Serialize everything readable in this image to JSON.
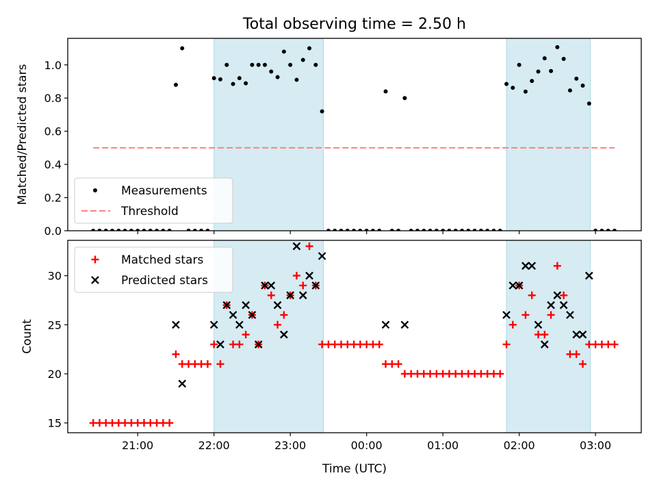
{
  "figure": {
    "title": "Total observing time = 2.50 h",
    "xlabel": "Time (UTC)"
  },
  "chart_data": [
    {
      "type": "scatter",
      "panel": "top",
      "ylabel": "Matched/Predicted stars",
      "xlim": [
        "20:05",
        "03:36"
      ],
      "ylim": [
        0,
        1.16
      ],
      "yticks": [
        0.0,
        0.2,
        0.4,
        0.6,
        0.8,
        1.0
      ],
      "ytick_labels": [
        "0.0",
        "0.2",
        "0.4",
        "0.6",
        "0.8",
        "1.0"
      ],
      "xticks": [
        "21:00",
        "22:00",
        "23:00",
        "00:00",
        "01:00",
        "02:00",
        "03:00"
      ],
      "xtick_labels": [
        "21:00",
        "22:00",
        "23:00",
        "00:00",
        "01:00",
        "02:00",
        "03:00"
      ],
      "shaded_intervals": [
        [
          "22:00",
          "23:26"
        ],
        [
          "01:50",
          "02:56"
        ]
      ],
      "shade_color": "#add8e6",
      "legend": {
        "location": "lower-left",
        "entries": [
          "Measurements",
          "Threshold"
        ]
      },
      "series": [
        {
          "name": "Measurements",
          "marker": "dot",
          "color": "#000000",
          "points": [
            [
              "20:25",
              0
            ],
            [
              "20:30",
              0
            ],
            [
              "20:35",
              0
            ],
            [
              "20:40",
              0
            ],
            [
              "20:45",
              0
            ],
            [
              "20:50",
              0
            ],
            [
              "20:55",
              0
            ],
            [
              "21:00",
              0
            ],
            [
              "21:05",
              0
            ],
            [
              "21:10",
              0
            ],
            [
              "21:15",
              0
            ],
            [
              "21:20",
              0
            ],
            [
              "21:25",
              0
            ],
            [
              "21:30",
              0.88
            ],
            [
              "21:35",
              1.1
            ],
            [
              "21:40",
              0
            ],
            [
              "21:45",
              0
            ],
            [
              "21:50",
              0
            ],
            [
              "21:55",
              0
            ],
            [
              "22:00",
              0.92
            ],
            [
              "22:05",
              0.913
            ],
            [
              "22:10",
              1.0
            ],
            [
              "22:15",
              0.885
            ],
            [
              "22:20",
              0.92
            ],
            [
              "22:25",
              0.889
            ],
            [
              "22:30",
              1.0
            ],
            [
              "22:35",
              1.0
            ],
            [
              "22:40",
              1.0
            ],
            [
              "22:45",
              0.96
            ],
            [
              "22:50",
              0.926
            ],
            [
              "22:55",
              1.08
            ],
            [
              "23:00",
              1.0
            ],
            [
              "23:05",
              0.91
            ],
            [
              "23:10",
              1.03
            ],
            [
              "23:15",
              1.1
            ],
            [
              "23:20",
              1.0
            ],
            [
              "23:25",
              0.72
            ],
            [
              "23:30",
              0
            ],
            [
              "23:35",
              0
            ],
            [
              "23:40",
              0
            ],
            [
              "23:45",
              0
            ],
            [
              "23:50",
              0
            ],
            [
              "23:55",
              0
            ],
            [
              "00:00",
              0
            ],
            [
              "00:05",
              0
            ],
            [
              "00:10",
              0
            ],
            [
              "00:15",
              0.84
            ],
            [
              "00:20",
              0
            ],
            [
              "00:25",
              0
            ],
            [
              "00:30",
              0.8
            ],
            [
              "00:35",
              0
            ],
            [
              "00:40",
              0
            ],
            [
              "00:45",
              0
            ],
            [
              "00:50",
              0
            ],
            [
              "00:55",
              0
            ],
            [
              "01:00",
              0
            ],
            [
              "01:05",
              0
            ],
            [
              "01:10",
              0
            ],
            [
              "01:15",
              0
            ],
            [
              "01:20",
              0
            ],
            [
              "01:25",
              0
            ],
            [
              "01:30",
              0
            ],
            [
              "01:35",
              0
            ],
            [
              "01:40",
              0
            ],
            [
              "01:45",
              0
            ],
            [
              "01:50",
              0.885
            ],
            [
              "01:55",
              0.862
            ],
            [
              "02:00",
              1.0
            ],
            [
              "02:05",
              0.839
            ],
            [
              "02:10",
              0.903
            ],
            [
              "02:15",
              0.96
            ],
            [
              "02:20",
              1.04
            ],
            [
              "02:25",
              0.963
            ],
            [
              "02:30",
              1.107
            ],
            [
              "02:35",
              1.036
            ],
            [
              "02:40",
              0.846
            ],
            [
              "02:45",
              0.917
            ],
            [
              "02:50",
              0.875
            ],
            [
              "02:55",
              0.767
            ],
            [
              "03:00",
              0
            ],
            [
              "03:05",
              0
            ],
            [
              "03:10",
              0
            ],
            [
              "03:15",
              0
            ]
          ]
        },
        {
          "name": "Threshold",
          "style": "dashed-line",
          "color": "#ff7f7f",
          "points": [
            [
              "20:25",
              0.5
            ],
            [
              "03:15",
              0.5
            ]
          ]
        }
      ]
    },
    {
      "type": "scatter",
      "panel": "bottom",
      "ylabel": "Count",
      "xlim": [
        "20:05",
        "03:36"
      ],
      "ylim": [
        14,
        33.6
      ],
      "yticks": [
        15,
        20,
        25,
        30
      ],
      "ytick_labels": [
        "15",
        "20",
        "25",
        "30"
      ],
      "xticks": [
        "21:00",
        "22:00",
        "23:00",
        "00:00",
        "01:00",
        "02:00",
        "03:00"
      ],
      "xtick_labels": [
        "21:00",
        "22:00",
        "23:00",
        "00:00",
        "01:00",
        "02:00",
        "03:00"
      ],
      "shaded_intervals": [
        [
          "22:00",
          "23:26"
        ],
        [
          "01:50",
          "02:56"
        ]
      ],
      "shade_color": "#add8e6",
      "legend": {
        "location": "upper-left",
        "entries": [
          "Matched stars",
          "Predicted stars"
        ]
      },
      "series": [
        {
          "name": "Matched stars",
          "marker": "plus",
          "color": "#ff0000",
          "points": [
            [
              "20:25",
              15
            ],
            [
              "20:30",
              15
            ],
            [
              "20:35",
              15
            ],
            [
              "20:40",
              15
            ],
            [
              "20:45",
              15
            ],
            [
              "20:50",
              15
            ],
            [
              "20:55",
              15
            ],
            [
              "21:00",
              15
            ],
            [
              "21:05",
              15
            ],
            [
              "21:10",
              15
            ],
            [
              "21:15",
              15
            ],
            [
              "21:20",
              15
            ],
            [
              "21:25",
              15
            ],
            [
              "21:30",
              22
            ],
            [
              "21:35",
              21
            ],
            [
              "21:40",
              21
            ],
            [
              "21:45",
              21
            ],
            [
              "21:50",
              21
            ],
            [
              "21:55",
              21
            ],
            [
              "22:00",
              23
            ],
            [
              "22:05",
              21
            ],
            [
              "22:10",
              27
            ],
            [
              "22:15",
              23
            ],
            [
              "22:20",
              23
            ],
            [
              "22:25",
              24
            ],
            [
              "22:30",
              26
            ],
            [
              "22:35",
              23
            ],
            [
              "22:40",
              29
            ],
            [
              "22:45",
              28
            ],
            [
              "22:50",
              25
            ],
            [
              "22:55",
              26
            ],
            [
              "23:00",
              28
            ],
            [
              "23:05",
              30
            ],
            [
              "23:10",
              29
            ],
            [
              "23:15",
              33
            ],
            [
              "23:20",
              29
            ],
            [
              "23:25",
              23
            ],
            [
              "23:30",
              23
            ],
            [
              "23:35",
              23
            ],
            [
              "23:40",
              23
            ],
            [
              "23:45",
              23
            ],
            [
              "23:50",
              23
            ],
            [
              "23:55",
              23
            ],
            [
              "00:00",
              23
            ],
            [
              "00:05",
              23
            ],
            [
              "00:10",
              23
            ],
            [
              "00:15",
              21
            ],
            [
              "00:20",
              21
            ],
            [
              "00:25",
              21
            ],
            [
              "00:30",
              20
            ],
            [
              "00:35",
              20
            ],
            [
              "00:40",
              20
            ],
            [
              "00:45",
              20
            ],
            [
              "00:50",
              20
            ],
            [
              "00:55",
              20
            ],
            [
              "01:00",
              20
            ],
            [
              "01:05",
              20
            ],
            [
              "01:10",
              20
            ],
            [
              "01:15",
              20
            ],
            [
              "01:20",
              20
            ],
            [
              "01:25",
              20
            ],
            [
              "01:30",
              20
            ],
            [
              "01:35",
              20
            ],
            [
              "01:40",
              20
            ],
            [
              "01:45",
              20
            ],
            [
              "01:50",
              23
            ],
            [
              "01:55",
              25
            ],
            [
              "02:00",
              29
            ],
            [
              "02:05",
              26
            ],
            [
              "02:10",
              28
            ],
            [
              "02:15",
              24
            ],
            [
              "02:20",
              24
            ],
            [
              "02:25",
              26
            ],
            [
              "02:30",
              31
            ],
            [
              "02:35",
              28
            ],
            [
              "02:40",
              22
            ],
            [
              "02:45",
              22
            ],
            [
              "02:50",
              21
            ],
            [
              "02:55",
              23
            ],
            [
              "03:00",
              23
            ],
            [
              "03:05",
              23
            ],
            [
              "03:10",
              23
            ],
            [
              "03:15",
              23
            ]
          ]
        },
        {
          "name": "Predicted stars",
          "marker": "x",
          "color": "#000000",
          "points": [
            [
              "21:30",
              25
            ],
            [
              "21:35",
              19
            ],
            [
              "22:00",
              25
            ],
            [
              "22:05",
              23
            ],
            [
              "22:10",
              27
            ],
            [
              "22:15",
              26
            ],
            [
              "22:20",
              25
            ],
            [
              "22:25",
              27
            ],
            [
              "22:30",
              26
            ],
            [
              "22:35",
              23
            ],
            [
              "22:40",
              29
            ],
            [
              "22:45",
              29
            ],
            [
              "22:50",
              27
            ],
            [
              "22:55",
              24
            ],
            [
              "23:00",
              28
            ],
            [
              "23:05",
              33
            ],
            [
              "23:10",
              28
            ],
            [
              "23:15",
              30
            ],
            [
              "23:20",
              29
            ],
            [
              "23:25",
              32
            ],
            [
              "00:15",
              25
            ],
            [
              "00:30",
              25
            ],
            [
              "01:50",
              26
            ],
            [
              "01:55",
              29
            ],
            [
              "02:00",
              29
            ],
            [
              "02:05",
              31
            ],
            [
              "02:10",
              31
            ],
            [
              "02:15",
              25
            ],
            [
              "02:20",
              23
            ],
            [
              "02:25",
              27
            ],
            [
              "02:30",
              28
            ],
            [
              "02:35",
              27
            ],
            [
              "02:40",
              26
            ],
            [
              "02:45",
              24
            ],
            [
              "02:50",
              24
            ],
            [
              "02:55",
              30
            ]
          ]
        }
      ]
    }
  ]
}
